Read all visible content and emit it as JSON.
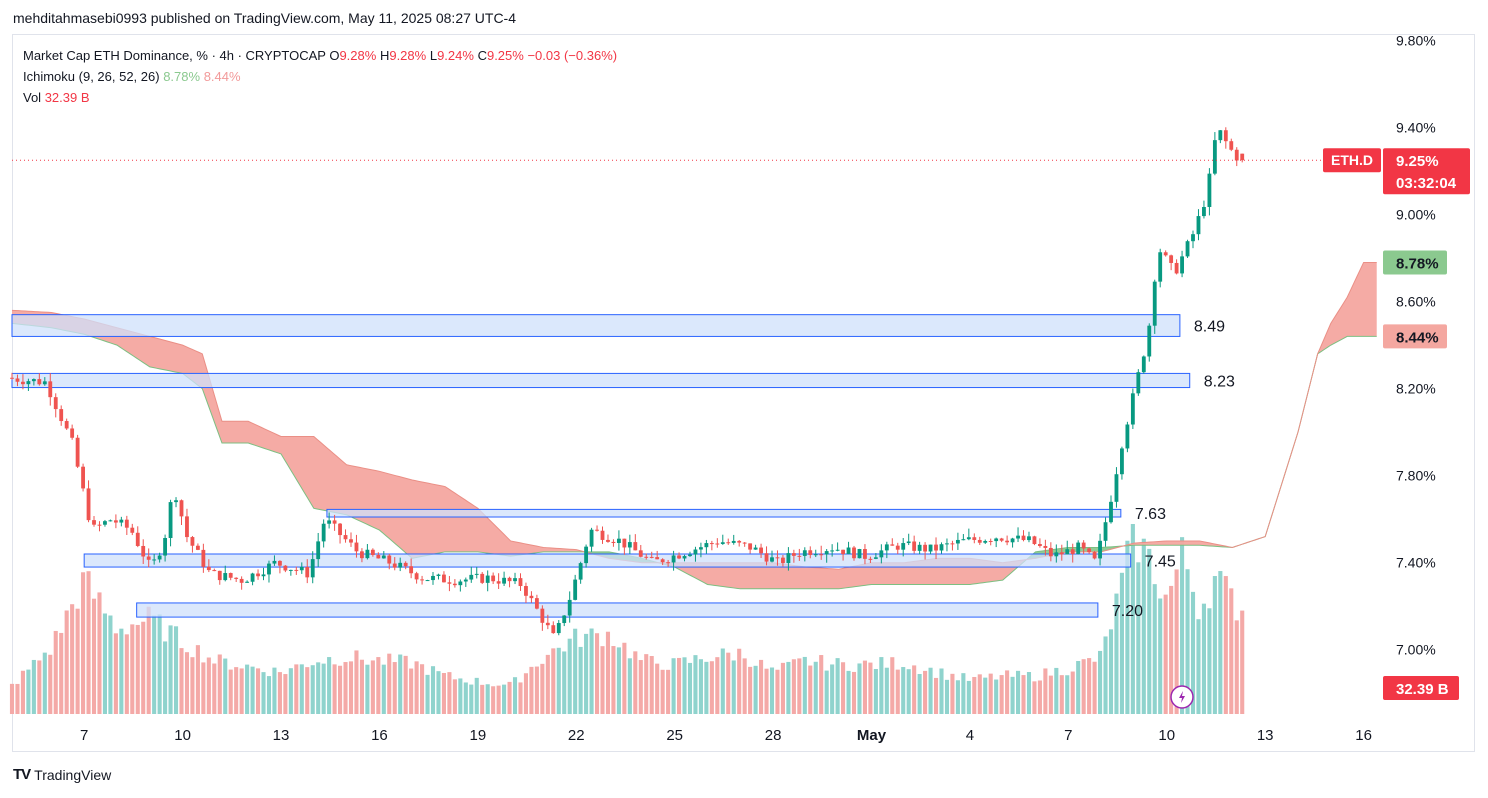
{
  "header": {
    "published_line": "mehditahmasebi0993 published on TradingView.com, May 11, 2025 08:27 UTC-4"
  },
  "legend": {
    "symbol_prefix": "Market Cap ETH Dominance, % · 4h · CRYPTOCAP ",
    "o_label": "O",
    "o_value": "9.28%",
    "h_label": "H",
    "h_value": "9.28%",
    "l_label": "L",
    "l_value": "9.24%",
    "c_label": "C",
    "c_value": "9.25%",
    "change": "−0.03 (−0.36%)",
    "ichimoku_label": "Ichimoku (9, 26, 52, 26)",
    "ichimoku_v1": "8.78%",
    "ichimoku_v2": "8.44%",
    "vol_label": "Vol",
    "vol_value": "32.39 B"
  },
  "footer": {
    "logo": "TV",
    "brand": "TradingView"
  },
  "colors": {
    "up": "#26a69a",
    "down": "#ef5350",
    "up_bright": "#089981",
    "vol_up": "#8fd3cd",
    "vol_down": "#f4a9a7",
    "cloud_bear": "#f4a7a0",
    "cloud_bull": "#8bc98f",
    "zone_fill": "#cfe0fb",
    "zone_stroke": "#2962ff",
    "price_line": "#f23645"
  },
  "chart_data": {
    "type": "candlestick",
    "symbol": "ETH.D",
    "timeframe": "4h",
    "y_axis": {
      "ticks": [
        "9.80%",
        "9.40%",
        "9.00%",
        "8.60%",
        "8.20%",
        "7.80%",
        "7.40%",
        "7.00%"
      ],
      "tick_values": [
        9.8,
        9.4,
        9.0,
        8.6,
        8.2,
        7.8,
        7.4,
        7.0
      ],
      "ylim": [
        6.7,
        9.83
      ]
    },
    "x_axis": {
      "ticks": [
        "7",
        "10",
        "13",
        "16",
        "19",
        "22",
        "25",
        "28",
        "May",
        "4",
        "7",
        "10",
        "13",
        "16"
      ],
      "tick_days": [
        7,
        10,
        13,
        16,
        19,
        22,
        25,
        28,
        31,
        34,
        37,
        40,
        43,
        46
      ],
      "start_day": 4.8,
      "end_day": 46.5
    },
    "price_labels": [
      {
        "symbol": "ETH.D",
        "value": "9.25%",
        "countdown": "03:32:04",
        "kind": "last-price",
        "y": 9.25
      },
      {
        "value": "8.78%",
        "kind": "ichimoku-span-a",
        "y": 8.78
      },
      {
        "value": "8.44%",
        "kind": "ichimoku-span-b",
        "y": 8.44
      },
      {
        "value": "32.39 B",
        "kind": "volume",
        "y": 6.87
      }
    ],
    "zones": [
      {
        "label": "8.49",
        "low": 8.44,
        "high": 8.54,
        "from_day": 4.8,
        "to_day": 40.4
      },
      {
        "label": "8.23",
        "low": 8.205,
        "high": 8.27,
        "from_day": 4.8,
        "to_day": 40.7
      },
      {
        "label": "7.63",
        "low": 7.61,
        "high": 7.645,
        "from_day": 14.4,
        "to_day": 38.6
      },
      {
        "label": "7.45",
        "low": 7.38,
        "high": 7.44,
        "from_day": 7.0,
        "to_day": 38.9
      },
      {
        "label": "7.20",
        "low": 7.15,
        "high": 7.215,
        "from_day": 8.6,
        "to_day": 37.9
      }
    ],
    "candle_anchors": [
      [
        4.8,
        8.25
      ],
      [
        6.0,
        8.23
      ],
      [
        6.8,
        7.95
      ],
      [
        7.4,
        7.55
      ],
      [
        8.0,
        7.6
      ],
      [
        8.6,
        7.55
      ],
      [
        9.2,
        7.37
      ],
      [
        9.6,
        7.5
      ],
      [
        9.9,
        7.75
      ],
      [
        10.3,
        7.52
      ],
      [
        11.0,
        7.35
      ],
      [
        12.0,
        7.32
      ],
      [
        13.0,
        7.4
      ],
      [
        14.0,
        7.35
      ],
      [
        14.5,
        7.6
      ],
      [
        15.5,
        7.45
      ],
      [
        16.5,
        7.4
      ],
      [
        17.5,
        7.33
      ],
      [
        18.5,
        7.32
      ],
      [
        19.5,
        7.33
      ],
      [
        20.5,
        7.3
      ],
      [
        21.5,
        7.05
      ],
      [
        22.0,
        7.25
      ],
      [
        22.6,
        7.55
      ],
      [
        23.5,
        7.5
      ],
      [
        24.5,
        7.4
      ],
      [
        25.5,
        7.45
      ],
      [
        26.5,
        7.5
      ],
      [
        27.5,
        7.47
      ],
      [
        28.3,
        7.4
      ],
      [
        29.0,
        7.45
      ],
      [
        30.0,
        7.47
      ],
      [
        31.0,
        7.43
      ],
      [
        32.0,
        7.48
      ],
      [
        33.0,
        7.46
      ],
      [
        34.0,
        7.5
      ],
      [
        35.0,
        7.52
      ],
      [
        36.0,
        7.5
      ],
      [
        36.7,
        7.43
      ],
      [
        37.5,
        7.47
      ],
      [
        38.0,
        7.4
      ],
      [
        38.4,
        7.65
      ],
      [
        38.8,
        7.95
      ],
      [
        39.2,
        8.2
      ],
      [
        39.6,
        8.45
      ],
      [
        39.9,
        8.85
      ],
      [
        40.4,
        8.73
      ],
      [
        41.0,
        8.92
      ],
      [
        41.4,
        9.1
      ],
      [
        41.7,
        9.4
      ],
      [
        42.1,
        9.3
      ],
      [
        42.4,
        9.25
      ]
    ],
    "cloud_span_a": [
      [
        4.8,
        8.5
      ],
      [
        6.0,
        8.48
      ],
      [
        7.0,
        8.45
      ],
      [
        8.0,
        8.4
      ],
      [
        9.0,
        8.3
      ],
      [
        10.0,
        8.27
      ],
      [
        10.6,
        8.2
      ],
      [
        11.2,
        7.95
      ],
      [
        12.0,
        7.95
      ],
      [
        13.0,
        7.9
      ],
      [
        14.0,
        7.65
      ],
      [
        15.0,
        7.62
      ],
      [
        16.0,
        7.55
      ],
      [
        17.0,
        7.42
      ],
      [
        18.0,
        7.45
      ],
      [
        19.0,
        7.45
      ],
      [
        20.0,
        7.43
      ],
      [
        21.0,
        7.45
      ],
      [
        22.0,
        7.45
      ],
      [
        23.0,
        7.45
      ],
      [
        24.0,
        7.42
      ],
      [
        25.0,
        7.38
      ],
      [
        26.0,
        7.3
      ],
      [
        27.0,
        7.28
      ],
      [
        28.0,
        7.28
      ],
      [
        29.0,
        7.28
      ],
      [
        30.0,
        7.28
      ],
      [
        31.0,
        7.3
      ],
      [
        32.0,
        7.3
      ],
      [
        33.0,
        7.3
      ],
      [
        34.0,
        7.3
      ],
      [
        35.0,
        7.32
      ],
      [
        36.0,
        7.45
      ],
      [
        37.0,
        7.47
      ],
      [
        38.0,
        7.47
      ],
      [
        39.0,
        7.48
      ],
      [
        40.0,
        7.48
      ],
      [
        41.0,
        7.48
      ],
      [
        42.0,
        7.47
      ],
      [
        43.0,
        7.52
      ],
      [
        44.0,
        8.0
      ],
      [
        44.6,
        8.36
      ],
      [
        45.0,
        8.4
      ],
      [
        45.5,
        8.44
      ],
      [
        46.5,
        8.44
      ]
    ],
    "cloud_span_b": [
      [
        4.8,
        8.56
      ],
      [
        6.0,
        8.55
      ],
      [
        7.0,
        8.52
      ],
      [
        8.0,
        8.48
      ],
      [
        9.0,
        8.44
      ],
      [
        10.0,
        8.4
      ],
      [
        10.6,
        8.36
      ],
      [
        11.2,
        8.05
      ],
      [
        12.0,
        8.05
      ],
      [
        13.0,
        7.98
      ],
      [
        14.0,
        7.98
      ],
      [
        15.0,
        7.85
      ],
      [
        16.0,
        7.82
      ],
      [
        17.0,
        7.78
      ],
      [
        18.0,
        7.75
      ],
      [
        19.0,
        7.65
      ],
      [
        20.0,
        7.5
      ],
      [
        21.0,
        7.47
      ],
      [
        22.0,
        7.46
      ],
      [
        23.0,
        7.42
      ],
      [
        24.0,
        7.4
      ],
      [
        25.0,
        7.4
      ],
      [
        26.0,
        7.4
      ],
      [
        27.0,
        7.4
      ],
      [
        28.0,
        7.4
      ],
      [
        29.0,
        7.38
      ],
      [
        30.0,
        7.37
      ],
      [
        31.0,
        7.4
      ],
      [
        32.0,
        7.4
      ],
      [
        33.0,
        7.42
      ],
      [
        34.0,
        7.42
      ],
      [
        35.0,
        7.4
      ],
      [
        36.0,
        7.42
      ],
      [
        37.0,
        7.45
      ],
      [
        38.0,
        7.45
      ],
      [
        39.0,
        7.49
      ],
      [
        40.0,
        7.5
      ],
      [
        41.0,
        7.5
      ],
      [
        42.0,
        7.47
      ],
      [
        43.0,
        7.52
      ],
      [
        44.0,
        8.0
      ],
      [
        44.6,
        8.36
      ],
      [
        45.0,
        8.5
      ],
      [
        45.5,
        8.62
      ],
      [
        46.0,
        8.78
      ],
      [
        46.5,
        8.78
      ]
    ],
    "volume": {
      "unit": "B",
      "last_value": 32.39,
      "profile": [
        [
          4.8,
          0.15
        ],
        [
          6.0,
          0.35
        ],
        [
          7.0,
          0.7
        ],
        [
          8.0,
          0.45
        ],
        [
          9.0,
          0.5
        ],
        [
          10.0,
          0.38
        ],
        [
          11.0,
          0.28
        ],
        [
          12.0,
          0.25
        ],
        [
          13.0,
          0.22
        ],
        [
          14.0,
          0.28
        ],
        [
          15.0,
          0.3
        ],
        [
          16.0,
          0.28
        ],
        [
          17.0,
          0.27
        ],
        [
          18.0,
          0.2
        ],
        [
          19.0,
          0.17
        ],
        [
          20.0,
          0.15
        ],
        [
          21.0,
          0.3
        ],
        [
          22.0,
          0.4
        ],
        [
          23.0,
          0.42
        ],
        [
          24.0,
          0.28
        ],
        [
          25.0,
          0.26
        ],
        [
          26.0,
          0.3
        ],
        [
          27.0,
          0.32
        ],
        [
          28.0,
          0.22
        ],
        [
          29.0,
          0.28
        ],
        [
          30.0,
          0.26
        ],
        [
          31.0,
          0.26
        ],
        [
          32.0,
          0.27
        ],
        [
          33.0,
          0.22
        ],
        [
          34.0,
          0.18
        ],
        [
          35.0,
          0.2
        ],
        [
          36.0,
          0.2
        ],
        [
          37.0,
          0.24
        ],
        [
          38.0,
          0.3
        ],
        [
          38.5,
          0.6
        ],
        [
          39.0,
          0.95
        ],
        [
          39.5,
          0.8
        ],
        [
          40.0,
          0.6
        ],
        [
          40.5,
          0.85
        ],
        [
          41.0,
          0.55
        ],
        [
          41.5,
          0.72
        ],
        [
          42.2,
          0.55
        ]
      ]
    },
    "last_price": 9.25
  }
}
